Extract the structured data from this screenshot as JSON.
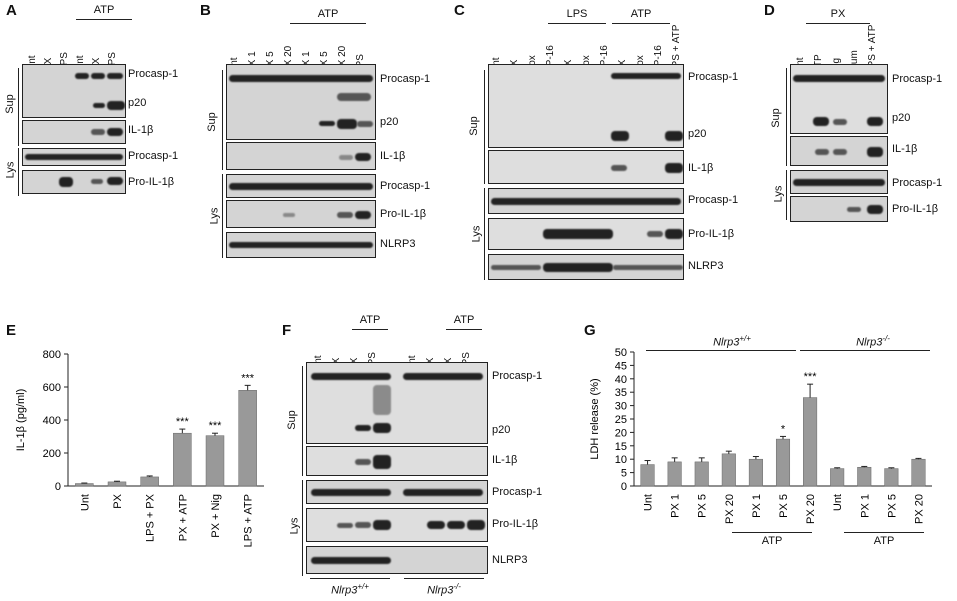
{
  "panels": {
    "A": {
      "label": "A",
      "lanes": [
        "Unt",
        "PX",
        "LPS",
        "Unt",
        "PX",
        "LPS"
      ],
      "group": "ATP",
      "blots": [
        "Procasp-1",
        "p20",
        "IL-1β",
        "Procasp-1",
        "Pro-IL-1β"
      ],
      "sides": [
        "Sup",
        "Lys"
      ]
    },
    "B": {
      "label": "B",
      "lanes": [
        "Unt",
        "PX 1",
        "PX 5",
        "PX 20",
        "PX 1",
        "PX 5",
        "PX 20",
        "LPS"
      ],
      "group": "ATP",
      "blots": [
        "Procasp-1",
        "p20",
        "IL-1β",
        "Procasp-1",
        "Pro-IL-1β",
        "NLRP3"
      ],
      "sides": [
        "Sup",
        "Lys"
      ]
    },
    "C": {
      "label": "C",
      "lanes": [
        "Unt",
        "PX",
        "Dox",
        "VP-16",
        "PX",
        "Dox",
        "VP-16",
        "PX",
        "Dox",
        "VP-16",
        "LPS + ATP"
      ],
      "groups": [
        "LPS",
        "ATP"
      ],
      "blots": [
        "Procasp-1",
        "p20",
        "IL-1β",
        "Procasp-1",
        "Pro-IL-1β",
        "NLRP3"
      ],
      "sides": [
        "Sup",
        "Lys"
      ]
    },
    "D": {
      "label": "D",
      "lanes": [
        "Unt",
        "ATP",
        "Nig",
        "Alum",
        "LPS + ATP"
      ],
      "group": "PX",
      "blots": [
        "Procasp-1",
        "p20",
        "IL-1β",
        "Procasp-1",
        "Pro-IL-1β"
      ],
      "sides": [
        "Sup",
        "Lys"
      ]
    },
    "E": {
      "label": "E"
    },
    "F": {
      "label": "F",
      "lanes": [
        "Unt",
        "PX",
        "PX",
        "LPS",
        "Unt",
        "PX",
        "PX",
        "LPS"
      ],
      "group": "ATP",
      "blots": [
        "Procasp-1",
        "p20",
        "IL-1β",
        "Procasp-1",
        "Pro-IL-1β",
        "NLRP3"
      ],
      "sides": [
        "Sup",
        "Lys"
      ],
      "genotypes": [
        "Nlrp3",
        "Nlrp3"
      ],
      "genotype_sup": [
        "+/+",
        "-/-"
      ]
    },
    "G": {
      "label": "G",
      "genotypes": [
        "Nlrp3",
        "Nlrp3"
      ],
      "genotype_sup": [
        "+/+",
        "-/-"
      ],
      "atp": "ATP"
    }
  },
  "chart_data": [
    {
      "type": "bar",
      "panel": "E",
      "categories": [
        "Unt",
        "PX",
        "LPS + PX",
        "PX + ATP",
        "PX + Nig",
        "LPS + ATP"
      ],
      "values": [
        15,
        25,
        55,
        320,
        305,
        580
      ],
      "errors": [
        3,
        4,
        6,
        25,
        15,
        30
      ],
      "significance": [
        "",
        "",
        "",
        "***",
        "***",
        "***"
      ],
      "ylabel": "IL-1β (pg/ml)",
      "ylim": [
        0,
        800
      ],
      "yticks": [
        0,
        200,
        400,
        600,
        800
      ],
      "color": "#999999"
    },
    {
      "type": "bar",
      "panel": "G",
      "categories": [
        "Unt",
        "PX 1",
        "PX 5",
        "PX 20",
        "PX 1",
        "PX 5",
        "PX 20",
        "Unt",
        "PX 1",
        "PX 5",
        "PX 20"
      ],
      "values": [
        8,
        9,
        9,
        12,
        10,
        17.5,
        33,
        6.5,
        7,
        6.5,
        10
      ],
      "errors": [
        1.5,
        1.5,
        1.5,
        1,
        1,
        1,
        5,
        0.3,
        0.3,
        0.3,
        0.3
      ],
      "significance": [
        "",
        "",
        "",
        "",
        "",
        "*",
        "***",
        "",
        "",
        "",
        ""
      ],
      "ylabel": "LDH release (%)",
      "ylim": [
        0,
        50
      ],
      "yticks": [
        0,
        5,
        10,
        15,
        20,
        25,
        30,
        35,
        40,
        45,
        50
      ],
      "color": "#999999"
    }
  ]
}
